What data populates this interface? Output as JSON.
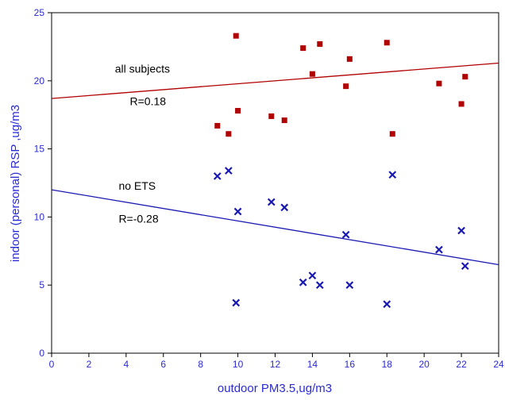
{
  "chart_data": {
    "type": "scatter",
    "xlabel": "outdoor PM3.5,ug/m3",
    "ylabel": "indoor (personal) RSP ,ug/m3",
    "xlim": [
      0,
      24
    ],
    "ylim": [
      0,
      25
    ],
    "x_ticks": [
      "0",
      "2",
      "4",
      "6",
      "8",
      "10",
      "12",
      "14",
      "16",
      "18",
      "20",
      "22",
      "24"
    ],
    "y_ticks": [
      "0",
      "5",
      "10",
      "15",
      "20",
      "25"
    ],
    "grid": false,
    "legend": "none",
    "series": [
      {
        "marker": "square",
        "color": "#b00000",
        "points": [
          [
            8.9,
            16.7
          ],
          [
            9.5,
            16.1
          ],
          [
            9.9,
            23.3
          ],
          [
            10.0,
            17.8
          ],
          [
            11.8,
            17.4
          ],
          [
            12.5,
            17.1
          ],
          [
            13.5,
            22.4
          ],
          [
            14.0,
            20.5
          ],
          [
            14.4,
            22.7
          ],
          [
            15.8,
            19.6
          ],
          [
            16.0,
            21.6
          ],
          [
            18.0,
            22.8
          ],
          [
            18.3,
            16.1
          ],
          [
            20.8,
            19.8
          ],
          [
            22.0,
            18.3
          ],
          [
            22.2,
            20.3
          ]
        ],
        "fit": {
          "x": [
            0,
            24
          ],
          "y": [
            18.7,
            21.3
          ],
          "color": "#b00000"
        }
      },
      {
        "marker": "x",
        "color": "#1a1ab3",
        "points": [
          [
            8.9,
            13.0
          ],
          [
            9.5,
            13.4
          ],
          [
            9.9,
            3.7
          ],
          [
            10.0,
            10.4
          ],
          [
            11.8,
            11.1
          ],
          [
            12.5,
            10.7
          ],
          [
            13.5,
            5.2
          ],
          [
            14.0,
            5.7
          ],
          [
            14.4,
            5.0
          ],
          [
            15.8,
            8.7
          ],
          [
            16.0,
            5.0
          ],
          [
            18.0,
            3.6
          ],
          [
            18.3,
            13.1
          ],
          [
            20.8,
            7.6
          ],
          [
            22.0,
            9.0
          ],
          [
            22.2,
            6.4
          ]
        ],
        "fit": {
          "x": [
            0,
            24
          ],
          "y": [
            12.0,
            6.5
          ],
          "color": "#1a1ab3"
        }
      }
    ],
    "annotations": [
      {
        "text": "all subjects",
        "x": 3.4,
        "y": 20.6
      },
      {
        "text": "R=0.18",
        "x": 4.2,
        "y": 18.2
      },
      {
        "text": "no ETS",
        "x": 3.6,
        "y": 12.0
      },
      {
        "text": "R=-0.28",
        "x": 3.6,
        "y": 9.6
      }
    ]
  }
}
